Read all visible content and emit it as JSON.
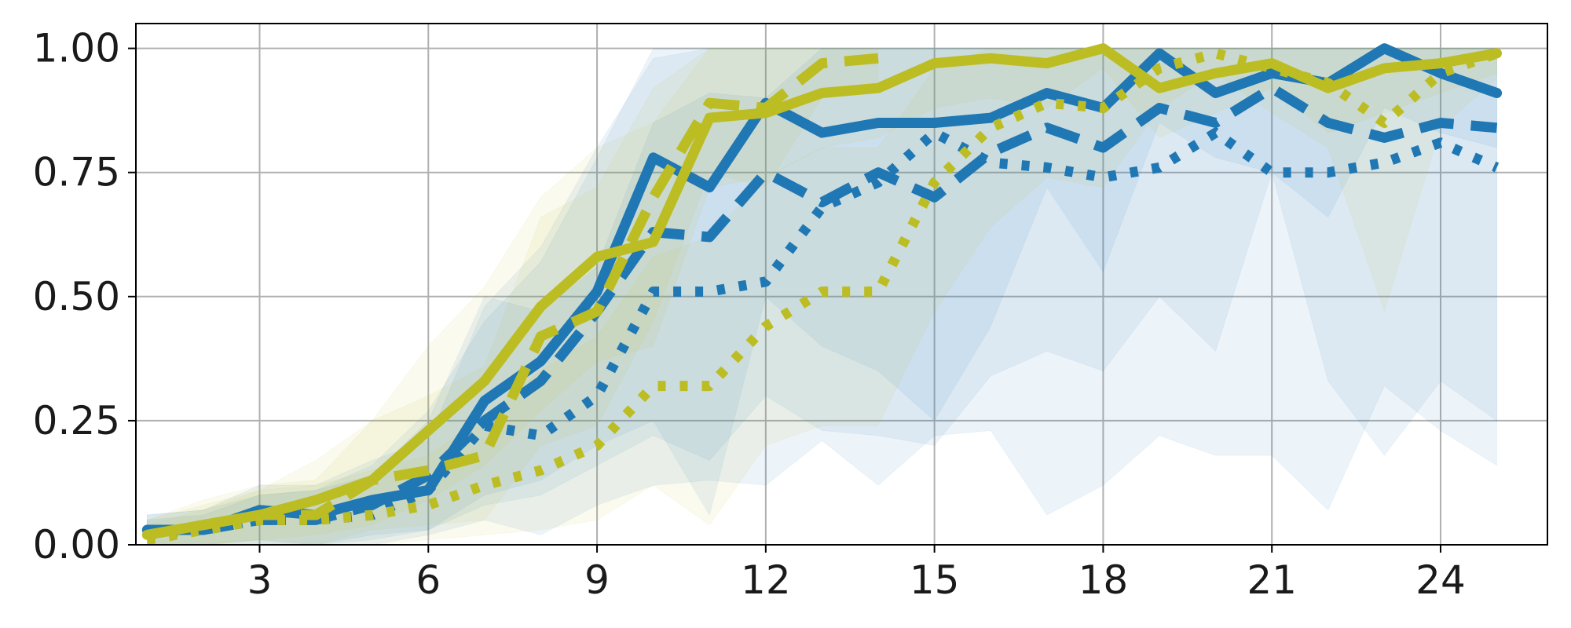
{
  "chart_data": {
    "type": "line",
    "title": "",
    "xlabel": "",
    "ylabel": "",
    "xlim": [
      0.8,
      25.9
    ],
    "ylim": [
      0.0,
      1.05
    ],
    "x_ticks": [
      3,
      6,
      9,
      12,
      15,
      18,
      21,
      24
    ],
    "y_ticks": [
      0.0,
      0.25,
      0.5,
      0.75,
      1.0
    ],
    "x_tick_labels": [
      "3",
      "6",
      "9",
      "12",
      "15",
      "18",
      "21",
      "24"
    ],
    "y_tick_labels": [
      "0.00",
      "0.25",
      "0.50",
      "0.75",
      "1.00"
    ],
    "grid": true,
    "legend": "none",
    "series": [
      {
        "color": "#1f77b4",
        "style": "solid",
        "x": [
          1,
          2,
          3,
          4,
          5,
          6,
          7,
          8,
          9,
          10,
          11,
          12,
          13,
          14,
          15,
          16,
          17,
          18,
          19,
          20,
          21,
          22,
          23,
          24,
          25
        ],
        "values": [
          0.03,
          0.03,
          0.07,
          0.06,
          0.09,
          0.11,
          0.29,
          0.37,
          0.51,
          0.78,
          0.72,
          0.89,
          0.83,
          0.85,
          0.85,
          0.86,
          0.91,
          0.88,
          0.99,
          0.91,
          0.95,
          0.93,
          1.0,
          0.95,
          0.91
        ],
        "band_low": [
          0.0,
          0.0,
          0.01,
          0.0,
          0.02,
          0.03,
          0.1,
          0.13,
          0.2,
          0.25,
          0.06,
          0.5,
          0.4,
          0.35,
          0.25,
          0.44,
          0.72,
          0.55,
          0.85,
          0.78,
          0.75,
          0.66,
          0.88,
          0.83,
          0.8
        ],
        "band_high": [
          0.06,
          0.07,
          0.12,
          0.12,
          0.17,
          0.21,
          0.48,
          0.6,
          0.8,
          0.98,
          1.0,
          1.0,
          1.0,
          1.0,
          1.0,
          1.0,
          1.0,
          1.0,
          1.0,
          1.0,
          1.0,
          1.0,
          1.0,
          1.0,
          1.0
        ]
      },
      {
        "color": "#1f77b4",
        "style": "dashed",
        "x": [
          1,
          2,
          3,
          4,
          5,
          6,
          7,
          8,
          9,
          10,
          11,
          12,
          13,
          14,
          15,
          16,
          17,
          18,
          19,
          20,
          21,
          22,
          23,
          24,
          25
        ],
        "values": [
          0.03,
          0.03,
          0.05,
          0.05,
          0.08,
          0.14,
          0.25,
          0.33,
          0.47,
          0.63,
          0.62,
          0.75,
          0.69,
          0.75,
          0.7,
          0.79,
          0.84,
          0.8,
          0.88,
          0.85,
          0.92,
          0.85,
          0.82,
          0.85,
          0.84
        ],
        "band_low": [
          0.0,
          0.0,
          0.0,
          0.0,
          0.01,
          0.03,
          0.08,
          0.1,
          0.16,
          0.22,
          0.17,
          0.3,
          0.23,
          0.22,
          0.2,
          0.34,
          0.39,
          0.35,
          0.5,
          0.39,
          0.75,
          0.33,
          0.18,
          0.33,
          0.25
        ],
        "band_high": [
          0.06,
          0.07,
          0.1,
          0.11,
          0.16,
          0.27,
          0.45,
          0.57,
          0.78,
          1.0,
          1.0,
          1.0,
          1.0,
          1.0,
          1.0,
          1.0,
          1.0,
          1.0,
          1.0,
          1.0,
          1.0,
          1.0,
          1.0,
          1.0,
          1.0
        ]
      },
      {
        "color": "#1f77b4",
        "style": "dotted",
        "x": [
          1,
          2,
          3,
          4,
          5,
          6,
          7,
          8,
          9,
          10,
          11,
          12,
          13,
          14,
          15,
          16,
          17,
          18,
          19,
          20,
          21,
          22,
          23,
          24,
          25
        ],
        "values": [
          0.02,
          0.03,
          0.05,
          0.05,
          0.06,
          0.11,
          0.24,
          0.22,
          0.3,
          0.51,
          0.51,
          0.53,
          0.68,
          0.73,
          0.83,
          0.77,
          0.76,
          0.74,
          0.76,
          0.83,
          0.75,
          0.75,
          0.77,
          0.81,
          0.76
        ],
        "band_low": [
          0.0,
          0.0,
          0.0,
          0.0,
          0.0,
          0.02,
          0.05,
          0.02,
          0.08,
          0.12,
          0.13,
          0.12,
          0.21,
          0.12,
          0.22,
          0.23,
          0.06,
          0.12,
          0.22,
          0.18,
          0.18,
          0.07,
          0.32,
          0.23,
          0.16
        ],
        "band_high": [
          0.05,
          0.06,
          0.1,
          0.11,
          0.14,
          0.25,
          0.5,
          0.47,
          0.56,
          0.85,
          0.91,
          0.9,
          1.0,
          1.0,
          1.0,
          1.0,
          1.0,
          1.0,
          1.0,
          1.0,
          1.0,
          1.0,
          1.0,
          1.0,
          1.0
        ]
      },
      {
        "color": "#bcbd22",
        "style": "solid",
        "x": [
          1,
          2,
          3,
          4,
          5,
          6,
          7,
          8,
          9,
          10,
          11,
          12,
          13,
          14,
          15,
          16,
          17,
          18,
          19,
          20,
          21,
          22,
          23,
          24,
          25
        ],
        "values": [
          0.02,
          0.04,
          0.06,
          0.09,
          0.13,
          0.23,
          0.33,
          0.48,
          0.58,
          0.61,
          0.86,
          0.87,
          0.91,
          0.92,
          0.97,
          0.98,
          0.97,
          1.0,
          0.92,
          0.95,
          0.97,
          0.92,
          0.96,
          0.97,
          0.99
        ],
        "band_low": [
          0.0,
          0.0,
          0.01,
          0.02,
          0.04,
          0.09,
          0.16,
          0.27,
          0.37,
          0.4,
          0.72,
          0.74,
          0.8,
          0.82,
          0.88,
          0.9,
          0.88,
          0.96,
          0.82,
          0.87,
          0.92,
          0.83,
          0.87,
          0.91,
          0.95
        ],
        "band_high": [
          0.05,
          0.08,
          0.11,
          0.17,
          0.25,
          0.4,
          0.52,
          0.7,
          0.8,
          0.85,
          1.0,
          1.0,
          1.0,
          1.0,
          1.0,
          1.0,
          1.0,
          1.0,
          1.0,
          1.0,
          1.0,
          1.0,
          1.0,
          1.0,
          1.0
        ]
      },
      {
        "color": "#bcbd22",
        "style": "dashed",
        "x": [
          1,
          2,
          3,
          4,
          5,
          6,
          7,
          8,
          9,
          10,
          11,
          12,
          13,
          14
        ],
        "values": [
          0.02,
          0.04,
          0.06,
          0.06,
          0.13,
          0.15,
          0.18,
          0.42,
          0.47,
          0.7,
          0.89,
          0.88,
          0.97,
          0.98
        ],
        "band_low": [
          0.0,
          0.0,
          0.01,
          0.0,
          0.03,
          0.04,
          0.05,
          0.2,
          0.24,
          0.45,
          0.75,
          0.72,
          0.9,
          0.92
        ],
        "band_high": [
          0.05,
          0.09,
          0.12,
          0.13,
          0.25,
          0.3,
          0.36,
          0.66,
          0.72,
          0.92,
          1.0,
          1.0,
          1.0,
          1.0
        ]
      },
      {
        "color": "#bcbd22",
        "style": "dotted",
        "x": [
          1,
          2,
          3,
          4,
          5,
          6,
          7,
          8,
          9,
          10,
          11,
          12,
          13,
          14,
          15,
          16,
          17,
          18,
          19,
          20,
          21,
          22,
          23,
          24,
          25
        ],
        "values": [
          0.01,
          0.03,
          0.05,
          0.05,
          0.06,
          0.08,
          0.12,
          0.15,
          0.2,
          0.32,
          0.32,
          0.44,
          0.51,
          0.51,
          0.73,
          0.84,
          0.89,
          0.88,
          0.96,
          0.99,
          0.96,
          0.93,
          0.85,
          0.95,
          0.99
        ],
        "band_low": [
          0.0,
          0.0,
          0.0,
          0.0,
          0.0,
          0.01,
          0.02,
          0.03,
          0.05,
          0.12,
          0.04,
          0.2,
          0.24,
          0.24,
          0.47,
          0.64,
          0.74,
          0.72,
          0.88,
          0.95,
          0.87,
          0.8,
          0.47,
          0.84,
          0.94
        ],
        "band_high": [
          0.04,
          0.07,
          0.11,
          0.12,
          0.15,
          0.18,
          0.26,
          0.35,
          0.42,
          0.58,
          0.62,
          0.74,
          0.8,
          0.8,
          0.96,
          1.0,
          1.0,
          1.0,
          1.0,
          1.0,
          1.0,
          1.0,
          1.0,
          1.0,
          1.0
        ]
      }
    ]
  }
}
